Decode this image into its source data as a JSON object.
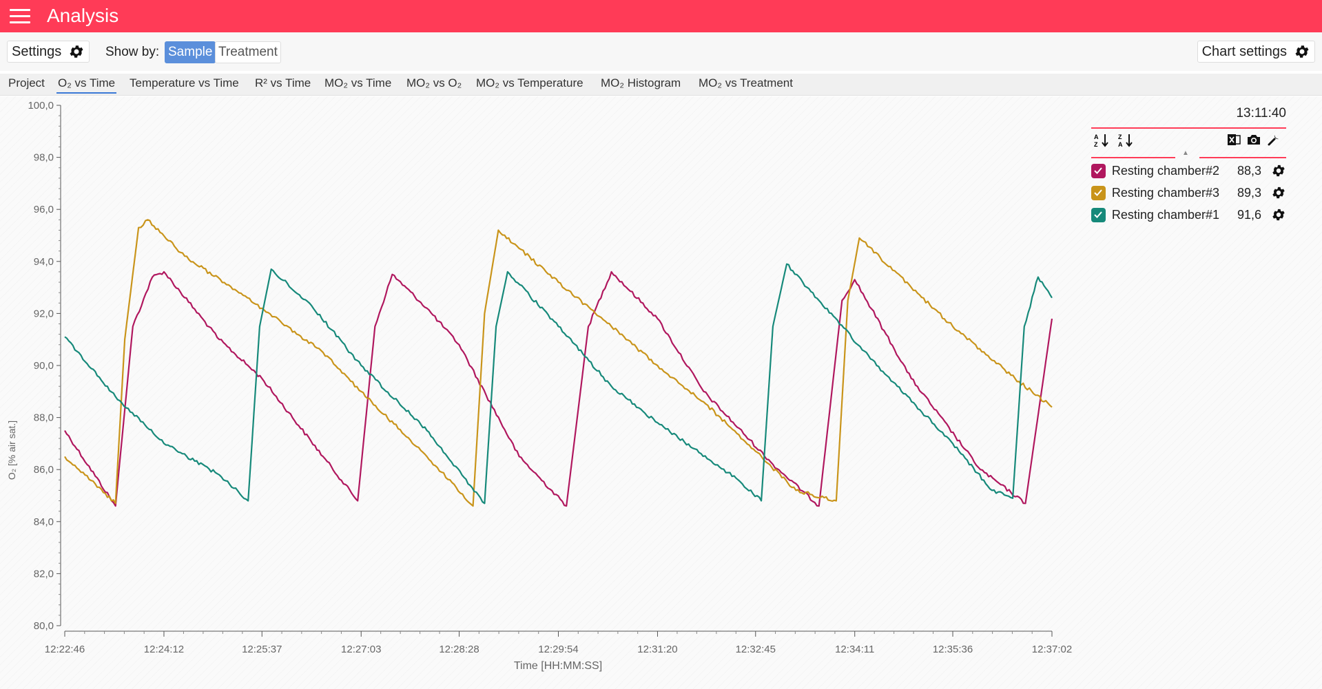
{
  "header": {
    "title": "Analysis",
    "background": "#ff3b57"
  },
  "toolbar": {
    "settings_label": "Settings",
    "show_by_label": "Show by:",
    "show_by_options": [
      "Sample",
      "Treatment"
    ],
    "show_by_selected": "Sample",
    "chart_settings_label": "Chart settings"
  },
  "tabs": [
    {
      "label": "Project",
      "active": false
    },
    {
      "label": "O₂ vs Time",
      "active": true
    },
    {
      "label": "Temperature vs Time",
      "active": false
    },
    {
      "label": "R² vs Time",
      "active": false
    },
    {
      "label": "MO₂ vs Time",
      "active": false
    },
    {
      "label": "MO₂ vs O₂",
      "active": false
    },
    {
      "label": "MO₂ vs Temperature",
      "active": false
    },
    {
      "label": "MO₂ Histogram",
      "active": false
    },
    {
      "label": "MO₂ vs Treatment",
      "active": false
    }
  ],
  "legend": {
    "time": "13:11:40",
    "icons": [
      "sort-ascending-icon",
      "sort-descending-icon",
      "excel-icon",
      "camera-icon",
      "wrench-icon"
    ],
    "items": [
      {
        "name": "Resting chamber#2",
        "value": "88,3",
        "color": "#b0175e",
        "checked": true
      },
      {
        "name": "Resting chamber#3",
        "value": "89,3",
        "color": "#c9941a",
        "checked": true
      },
      {
        "name": "Resting chamber#1",
        "value": "91,6",
        "color": "#16897a",
        "checked": true
      }
    ]
  },
  "chart_data": {
    "type": "line",
    "title": "",
    "xlabel": "Time [HH:MM:SS]",
    "ylabel": "O₂ [% air sat.]",
    "ylim": [
      80,
      100
    ],
    "xlim": [
      "12:22:46",
      "12:37:02"
    ],
    "y_ticks": [
      "80,0",
      "82,0",
      "84,0",
      "86,0",
      "88,0",
      "90,0",
      "92,0",
      "94,0",
      "96,0",
      "98,0",
      "100,0"
    ],
    "x_ticks": [
      "12:22:46",
      "12:24:12",
      "12:25:37",
      "12:27:03",
      "12:28:28",
      "12:29:54",
      "12:31:20",
      "12:32:45",
      "12:34:11",
      "12:35:36",
      "12:37:02"
    ],
    "grid": false,
    "series": [
      {
        "name": "Resting chamber#2",
        "color": "#b0175e",
        "points": [
          [
            "12:22:46",
            87.5
          ],
          [
            "12:23:30",
            84.6
          ],
          [
            "12:23:45",
            91.5
          ],
          [
            "12:24:02",
            93.4
          ],
          [
            "12:24:12",
            93.6
          ],
          [
            "12:25:00",
            91.0
          ],
          [
            "12:25:37",
            89.5
          ],
          [
            "12:26:30",
            86.5
          ],
          [
            "12:27:00",
            84.8
          ],
          [
            "12:27:15",
            91.5
          ],
          [
            "12:27:30",
            93.5
          ],
          [
            "12:28:00",
            92.2
          ],
          [
            "12:28:28",
            90.8
          ],
          [
            "12:29:20",
            86.5
          ],
          [
            "12:30:01",
            84.6
          ],
          [
            "12:30:20",
            91.5
          ],
          [
            "12:30:40",
            93.6
          ],
          [
            "12:31:20",
            91.8
          ],
          [
            "12:32:00",
            89.0
          ],
          [
            "12:33:00",
            86.2
          ],
          [
            "12:33:40",
            84.6
          ],
          [
            "12:34:00",
            92.5
          ],
          [
            "12:34:11",
            93.3
          ],
          [
            "12:35:00",
            89.5
          ],
          [
            "12:36:00",
            86.0
          ],
          [
            "12:36:39",
            84.7
          ],
          [
            "12:37:02",
            91.8
          ]
        ]
      },
      {
        "name": "Resting chamber#3",
        "color": "#c9941a",
        "points": [
          [
            "12:22:46",
            86.5
          ],
          [
            "12:23:30",
            84.7
          ],
          [
            "12:23:38",
            91.0
          ],
          [
            "12:23:50",
            95.3
          ],
          [
            "12:23:58",
            95.6
          ],
          [
            "12:24:30",
            94.2
          ],
          [
            "12:25:37",
            92.2
          ],
          [
            "12:26:30",
            90.5
          ],
          [
            "12:27:03",
            89.0
          ],
          [
            "12:28:00",
            86.5
          ],
          [
            "12:28:40",
            84.6
          ],
          [
            "12:28:50",
            92.0
          ],
          [
            "12:29:02",
            95.2
          ],
          [
            "12:29:54",
            93.2
          ],
          [
            "12:30:40",
            91.5
          ],
          [
            "12:31:20",
            90.0
          ],
          [
            "12:32:00",
            88.6
          ],
          [
            "12:32:45",
            86.7
          ],
          [
            "12:33:20",
            85.2
          ],
          [
            "12:33:55",
            84.8
          ],
          [
            "12:34:05",
            92.5
          ],
          [
            "12:34:15",
            94.9
          ],
          [
            "12:35:00",
            93.0
          ],
          [
            "12:35:36",
            91.5
          ],
          [
            "12:36:30",
            89.5
          ],
          [
            "12:37:02",
            88.4
          ]
        ]
      },
      {
        "name": "Resting chamber#1",
        "color": "#16897a",
        "points": [
          [
            "12:22:46",
            91.1
          ],
          [
            "12:23:30",
            88.8
          ],
          [
            "12:24:12",
            87.0
          ],
          [
            "12:25:00",
            85.8
          ],
          [
            "12:25:25",
            84.8
          ],
          [
            "12:25:35",
            91.5
          ],
          [
            "12:25:45",
            93.7
          ],
          [
            "12:26:20",
            92.3
          ],
          [
            "12:27:03",
            90.0
          ],
          [
            "12:28:00",
            87.5
          ],
          [
            "12:28:50",
            84.7
          ],
          [
            "12:29:00",
            91.5
          ],
          [
            "12:29:10",
            93.6
          ],
          [
            "12:29:54",
            91.5
          ],
          [
            "12:30:40",
            89.2
          ],
          [
            "12:31:20",
            87.8
          ],
          [
            "12:32:30",
            85.6
          ],
          [
            "12:32:50",
            84.8
          ],
          [
            "12:33:00",
            91.5
          ],
          [
            "12:33:12",
            93.9
          ],
          [
            "12:33:40",
            92.5
          ],
          [
            "12:34:30",
            90.0
          ],
          [
            "12:35:36",
            87.0
          ],
          [
            "12:36:10",
            85.2
          ],
          [
            "12:36:28",
            84.9
          ],
          [
            "12:36:38",
            91.5
          ],
          [
            "12:36:50",
            93.4
          ],
          [
            "12:37:02",
            92.6
          ]
        ]
      }
    ]
  }
}
